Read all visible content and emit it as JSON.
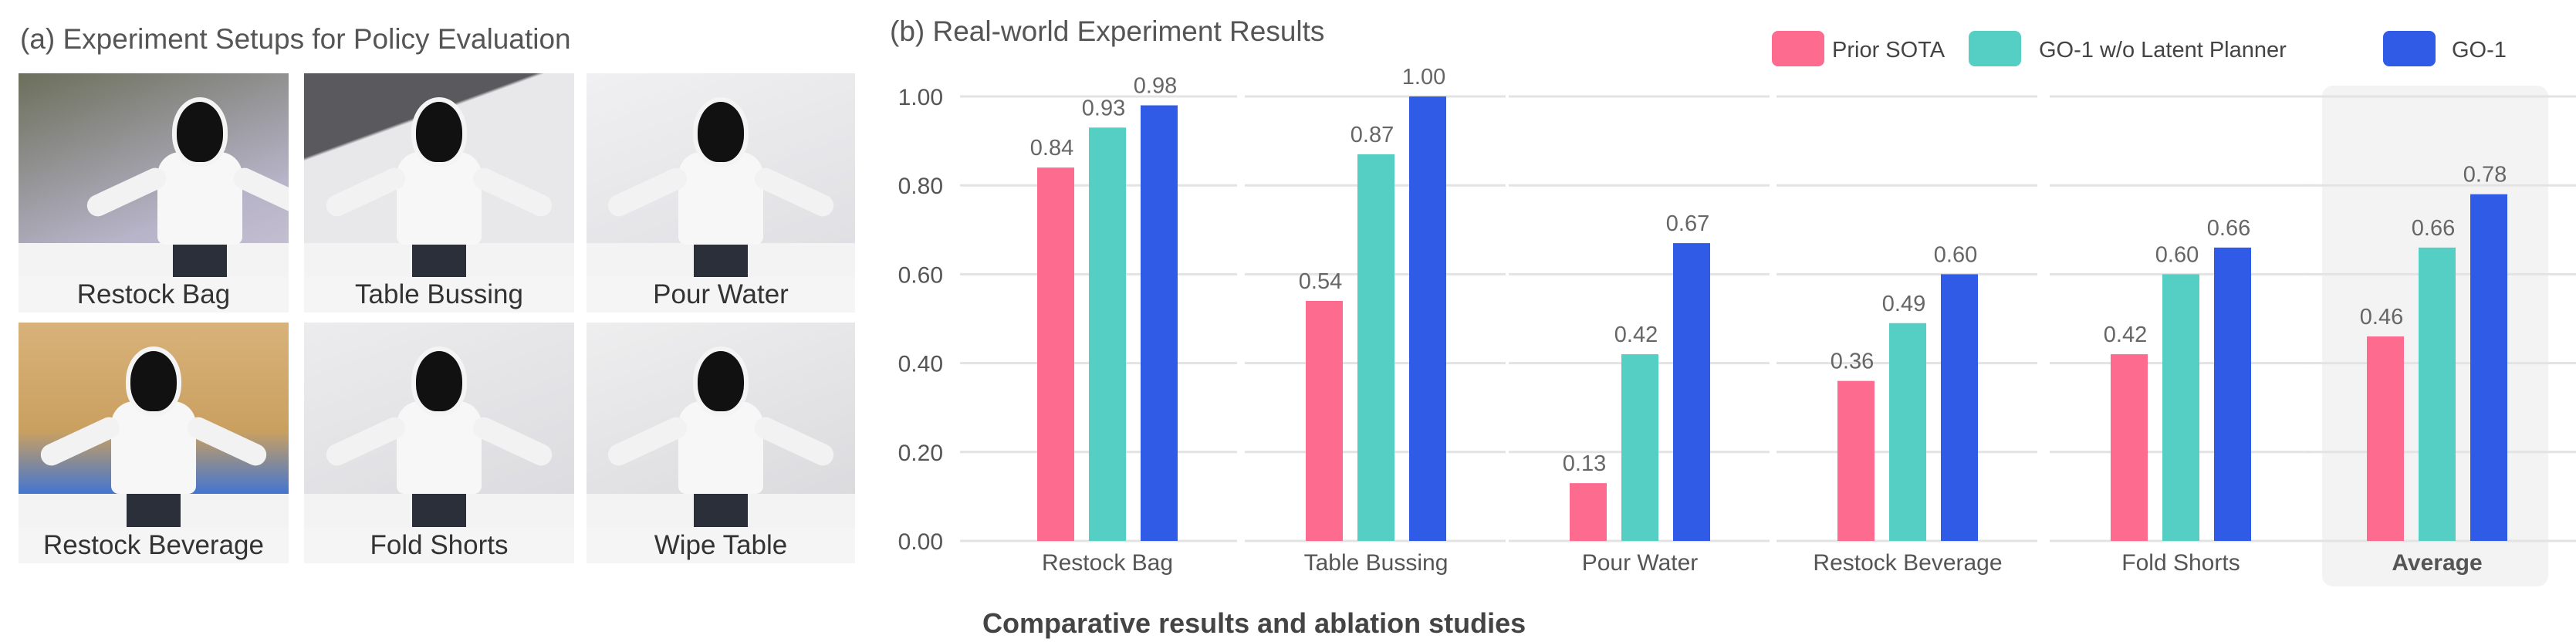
{
  "left_panel": {
    "title": "(a) Experiment Setups for Policy Evaluation",
    "photos": [
      {
        "label": "Restock Bag"
      },
      {
        "label": "Table Bussing"
      },
      {
        "label": "Pour Water"
      },
      {
        "label": "Restock Beverage"
      },
      {
        "label": "Fold Shorts"
      },
      {
        "label": "Wipe Table"
      }
    ]
  },
  "chart_data": {
    "type": "bar",
    "title": "(b) Real-world Experiment Results",
    "caption": "Comparative results and ablation studies",
    "categories": [
      "Restock Bag",
      "Table Bussing",
      "Pour Water",
      "Restock Beverage",
      "Fold Shorts",
      "Average"
    ],
    "highlighted_category": "Average",
    "series": [
      {
        "name": "Prior SOTA",
        "color": "#fd6b8e",
        "values": [
          0.84,
          0.54,
          0.13,
          0.36,
          0.42,
          0.46
        ]
      },
      {
        "name": "GO-1 w/o Latent Planner",
        "color": "#55cfc3",
        "values": [
          0.93,
          0.87,
          0.42,
          0.49,
          0.6,
          0.66
        ]
      },
      {
        "name": "GO-1",
        "color": "#2f5be6",
        "values": [
          0.98,
          1.0,
          0.67,
          0.6,
          0.66,
          0.78
        ]
      }
    ],
    "ylim": [
      0,
      1.0
    ],
    "yticks": [
      "0.00",
      "0.20",
      "0.40",
      "0.60",
      "0.80",
      "1.00"
    ],
    "grid": true,
    "legend_position": "top-right",
    "xlabel": "",
    "ylabel": ""
  }
}
